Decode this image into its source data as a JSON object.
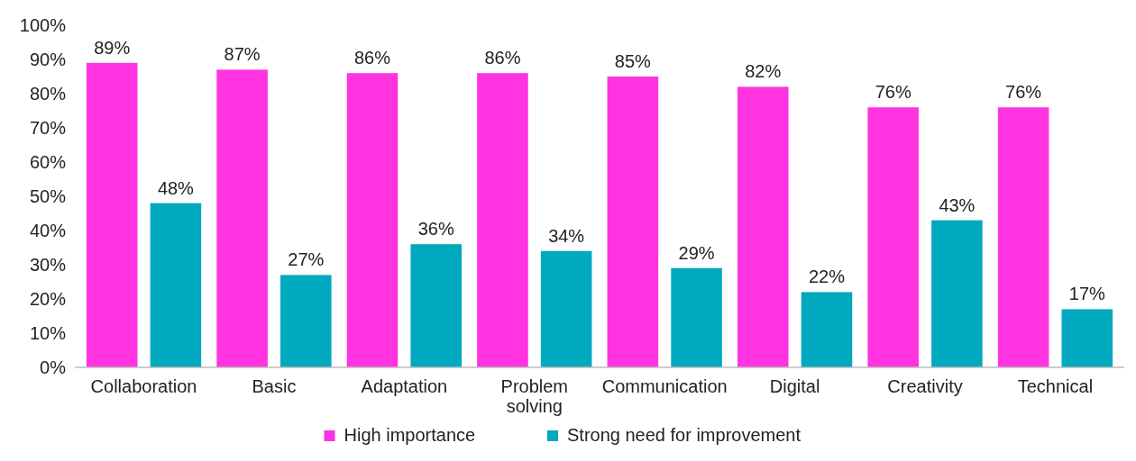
{
  "chart_data": {
    "type": "bar",
    "categories": [
      "Collaboration",
      "Basic",
      "Adaptation",
      "Problem solving",
      "Communication",
      "Digital",
      "Creativity",
      "Technical"
    ],
    "series": [
      {
        "name": "High importance",
        "color": "#ff33e0",
        "values": [
          89,
          87,
          86,
          86,
          85,
          82,
          76,
          76
        ],
        "value_labels": [
          "89%",
          "87%",
          "86%",
          "86%",
          "85%",
          "82%",
          "76%",
          "76%"
        ]
      },
      {
        "name": "Strong need for improvement",
        "color": "#00a9bd",
        "values": [
          48,
          27,
          36,
          34,
          29,
          22,
          43,
          17
        ],
        "value_labels": [
          "48%",
          "27%",
          "36%",
          "34%",
          "29%",
          "22%",
          "43%",
          "17%"
        ]
      }
    ],
    "ylim": [
      0,
      100
    ],
    "yticks": [
      {
        "value": 0,
        "label": "0%"
      },
      {
        "value": 10,
        "label": "10%"
      },
      {
        "value": 20,
        "label": "20%"
      },
      {
        "value": 30,
        "label": "30%"
      },
      {
        "value": 40,
        "label": "40%"
      },
      {
        "value": 50,
        "label": "50%"
      },
      {
        "value": 60,
        "label": "60%"
      },
      {
        "value": 70,
        "label": "70%"
      },
      {
        "value": 80,
        "label": "80%"
      },
      {
        "value": 90,
        "label": "90%"
      },
      {
        "value": 100,
        "label": "100%"
      }
    ],
    "legend": "bottom"
  }
}
